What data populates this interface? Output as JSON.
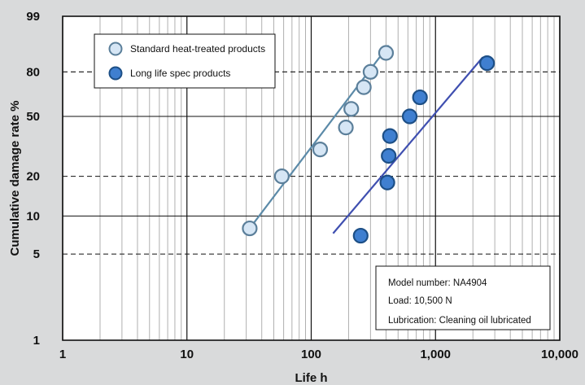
{
  "chart_data": {
    "type": "scatter",
    "title": "",
    "xlabel": "Life h",
    "ylabel": "Cumulative damage rate %",
    "xscale": "log",
    "yscale": "weibull",
    "xlim": [
      1,
      10000
    ],
    "ylim": [
      1,
      99
    ],
    "x_ticks": [
      1,
      10,
      100,
      1000,
      10000
    ],
    "x_tick_labels": [
      "1",
      "10",
      "100",
      "1,000",
      "10,000"
    ],
    "y_ticks": [
      1,
      5,
      10,
      20,
      50,
      80,
      99
    ],
    "y_tick_labels": [
      "1",
      "5",
      "10",
      "20",
      "50",
      "80",
      "99"
    ],
    "y_dashed_lines": [
      5,
      20,
      80
    ],
    "grid": true,
    "legend_position": "top-left",
    "series": [
      {
        "name": "Standard heat-treated products",
        "color": "#d6e6f5",
        "edge_color": "#5b7f9a",
        "line_color": "#5b8aa8",
        "points": [
          [
            32,
            8
          ],
          [
            58,
            20
          ],
          [
            118,
            31
          ],
          [
            210,
            55
          ],
          [
            190,
            43
          ],
          [
            265,
            70
          ],
          [
            300,
            80
          ],
          [
            400,
            90
          ]
        ],
        "fit_line": [
          [
            32,
            8
          ],
          [
            420,
            93
          ]
        ]
      },
      {
        "name": "Long life spec products",
        "color": "#3f7fd0",
        "edge_color": "#1d4f86",
        "line_color": "#3f4fb0",
        "points": [
          [
            250,
            7
          ],
          [
            410,
            18
          ],
          [
            420,
            28
          ],
          [
            430,
            38
          ],
          [
            620,
            50
          ],
          [
            750,
            63
          ],
          [
            2600,
            85
          ]
        ],
        "fit_line": [
          [
            150,
            7.3
          ],
          [
            2400,
            88
          ]
        ]
      }
    ],
    "annotation": {
      "lines": [
        "Model number: NA4904",
        "Load: 10,500 N",
        "Lubrication: Cleaning oil lubricated"
      ]
    }
  }
}
